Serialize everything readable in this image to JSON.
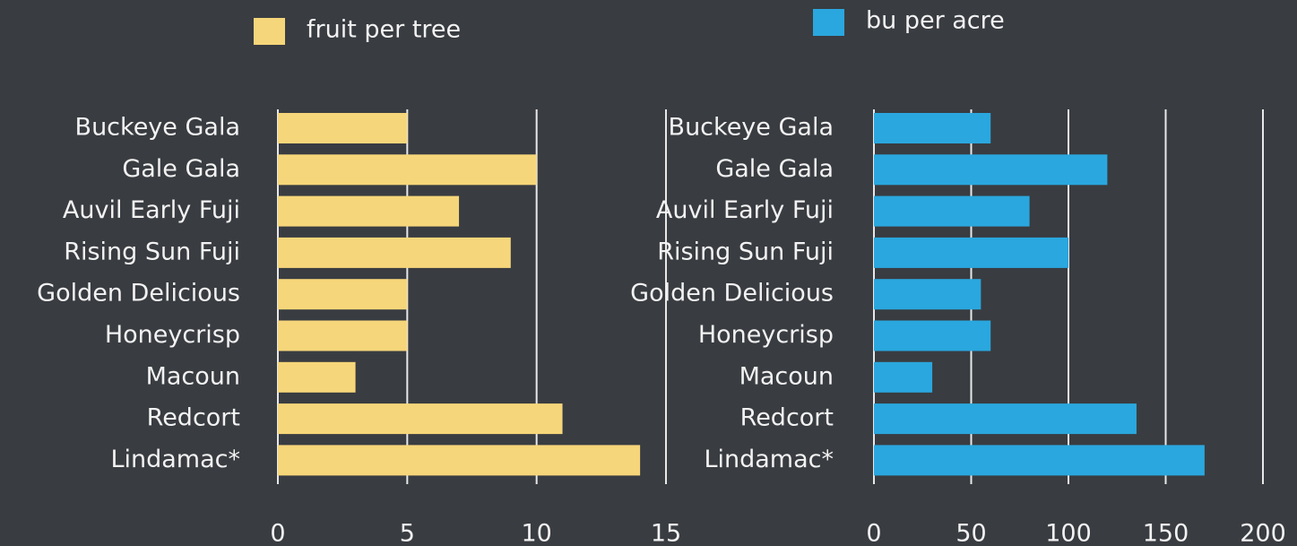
{
  "chart_data": [
    {
      "type": "bar",
      "orientation": "horizontal",
      "categories": [
        "Buckeye Gala",
        "Gale Gala",
        "Auvil Early Fuji",
        "Rising Sun Fuji",
        "Golden Delicious",
        "Honeycrisp",
        "Macoun",
        "Redcort",
        "Lindamac*"
      ],
      "series": [
        {
          "name": "fruit per tree",
          "color": "#f6d67a",
          "values": [
            5,
            10,
            7,
            9,
            5,
            5,
            3,
            11,
            14
          ]
        }
      ],
      "xlim": [
        0,
        15
      ],
      "xticks": [
        0,
        5,
        10,
        15
      ],
      "grid": true
    },
    {
      "type": "bar",
      "orientation": "horizontal",
      "categories": [
        "Buckeye Gala",
        "Gale Gala",
        "Auvil Early Fuji",
        "Rising Sun Fuji",
        "Golden Delicious",
        "Honeycrisp",
        "Macoun",
        "Redcort",
        "Lindamac*"
      ],
      "series": [
        {
          "name": "bu per acre",
          "color": "#2aa7de",
          "values": [
            60,
            120,
            80,
            100,
            55,
            60,
            30,
            135,
            170
          ]
        }
      ],
      "xlim": [
        0,
        200
      ],
      "xticks": [
        0,
        50,
        100,
        150,
        200
      ],
      "grid": true
    }
  ]
}
